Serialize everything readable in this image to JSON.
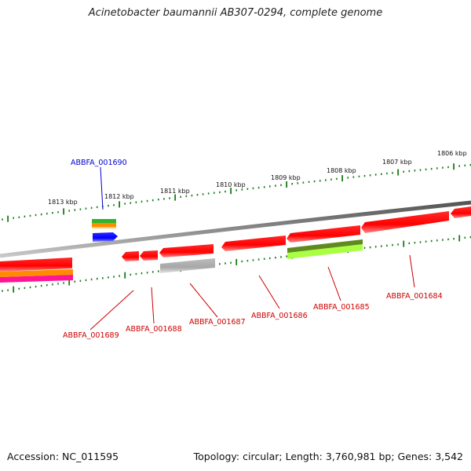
{
  "title": "Acinetobacter baumannii AB307-0294, complete genome",
  "footer": {
    "accession": "Accession: NC_011595",
    "summary": "Topology: circular; Length: 3,760,981 bp; Genes: 3,542"
  },
  "colors": {
    "backbone": "#7a7a7a",
    "gene_red": "#ff0000",
    "gene_grey": "#aaaaaa",
    "gene_blue": "#0000ff",
    "label_red": "#cc0000",
    "label_blue": "#0000cc",
    "tick_green": "#1a7a1a"
  },
  "kbp_labels": [
    {
      "id": "1813",
      "text": "1813 kbp"
    },
    {
      "id": "1812",
      "text": "1812 kbp"
    },
    {
      "id": "1811",
      "text": "1811 kbp"
    },
    {
      "id": "1810",
      "text": "1810 kbp"
    },
    {
      "id": "1809",
      "text": "1809 kbp"
    },
    {
      "id": "1808",
      "text": "1808 kbp"
    },
    {
      "id": "1807",
      "text": "1807 kbp"
    },
    {
      "id": "1806",
      "text": "1806 kbp"
    }
  ],
  "gene_labels": [
    {
      "id": "ABBFA_001690",
      "text": "ABBFA_001690"
    },
    {
      "id": "ABBFA_001689",
      "text": "ABBFA_001689"
    },
    {
      "id": "ABBFA_001688",
      "text": "ABBFA_001688"
    },
    {
      "id": "ABBFA_001687",
      "text": "ABBFA_001687"
    },
    {
      "id": "ABBFA_001686",
      "text": "ABBFA_001686"
    },
    {
      "id": "ABBFA_001685",
      "text": "ABBFA_001685"
    },
    {
      "id": "ABBFA_001684",
      "text": "ABBFA_001684"
    }
  ]
}
